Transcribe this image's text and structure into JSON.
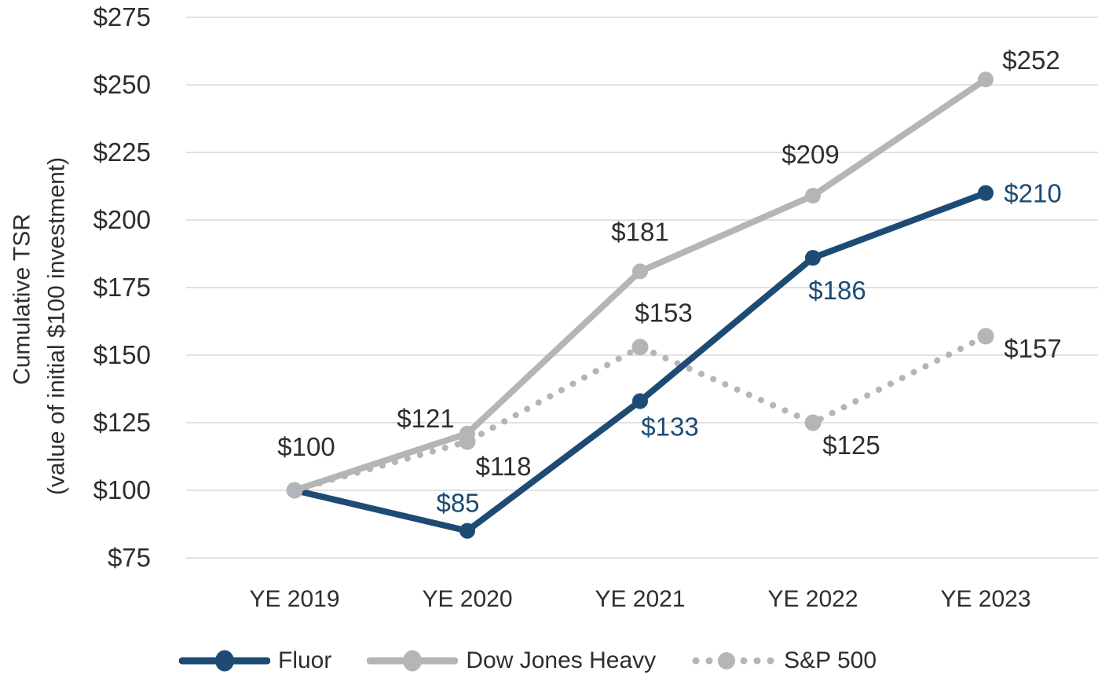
{
  "chart_data": {
    "type": "line",
    "title": "",
    "ylabel": "Cumulative TSR (value of initial $100 investment)",
    "ylabel_lines": [
      "Cumulative TSR",
      "(value of initial $100 investment)"
    ],
    "xlabel": "",
    "categories": [
      "YE 2019",
      "YE 2020",
      "YE 2021",
      "YE 2022",
      "YE 2023"
    ],
    "ylim": [
      75,
      275
    ],
    "y_tick_step": 25,
    "y_tick_labels": [
      "$275",
      "$250",
      "$225",
      "$200",
      "$175",
      "$150",
      "$125",
      "$100",
      "$75"
    ],
    "grid": true,
    "legend_position": "bottom",
    "series": [
      {
        "name": "Fluor",
        "style": "solid",
        "color": "#1d4b73",
        "label_color": "#1d4b73",
        "values": [
          100,
          85,
          133,
          186,
          210
        ],
        "point_labels": [
          "",
          "$85",
          "$133",
          "$186",
          "$210"
        ]
      },
      {
        "name": "Dow Jones Heavy",
        "style": "solid",
        "color": "#b4b5b6",
        "label_color": "#2e2e2e",
        "values": [
          100,
          121,
          181,
          209,
          252
        ],
        "point_labels": [
          "$100",
          "$121",
          "$181",
          "$209",
          "$252"
        ]
      },
      {
        "name": "S&P 500",
        "style": "dotted",
        "color": "#b4b5b6",
        "label_color": "#2e2e2e",
        "values": [
          100,
          118,
          153,
          125,
          157
        ],
        "point_labels": [
          "",
          "$118",
          "$153",
          "$125",
          "$157"
        ]
      }
    ],
    "colors": {
      "grid": "#d9d9d9",
      "text": "#2e2e2e",
      "background": "#ffffff"
    }
  }
}
